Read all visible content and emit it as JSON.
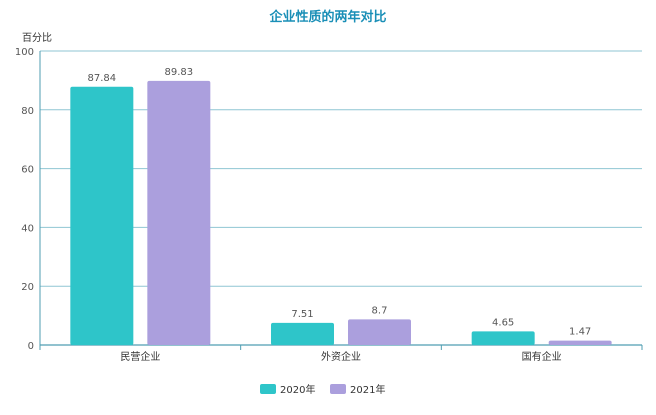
{
  "chart_data": {
    "type": "bar",
    "title": "企业性质的两年对比",
    "ylabel": "百分比",
    "xlabel": "",
    "categories": [
      "民营企业",
      "外资企业",
      "国有企业"
    ],
    "series": [
      {
        "name": "2020年",
        "values": [
          87.84,
          7.51,
          4.65
        ],
        "labels": [
          "87.84",
          "7.51",
          "4.65"
        ],
        "color": "#2ec5c9"
      },
      {
        "name": "2021年",
        "values": [
          89.83,
          8.7,
          1.47
        ],
        "labels": [
          "89.83",
          "8.7",
          "1.47"
        ],
        "color": "#ab9fdd"
      }
    ],
    "ylim": [
      0,
      100
    ],
    "yticks": [
      0,
      20,
      40,
      60,
      80,
      100
    ],
    "grid": true,
    "legend": "bottom-center"
  },
  "colors": {
    "title": "#1a8fb7",
    "grid": "#8fc6d3",
    "axis": "#4f9eb2",
    "text": "#555555"
  }
}
